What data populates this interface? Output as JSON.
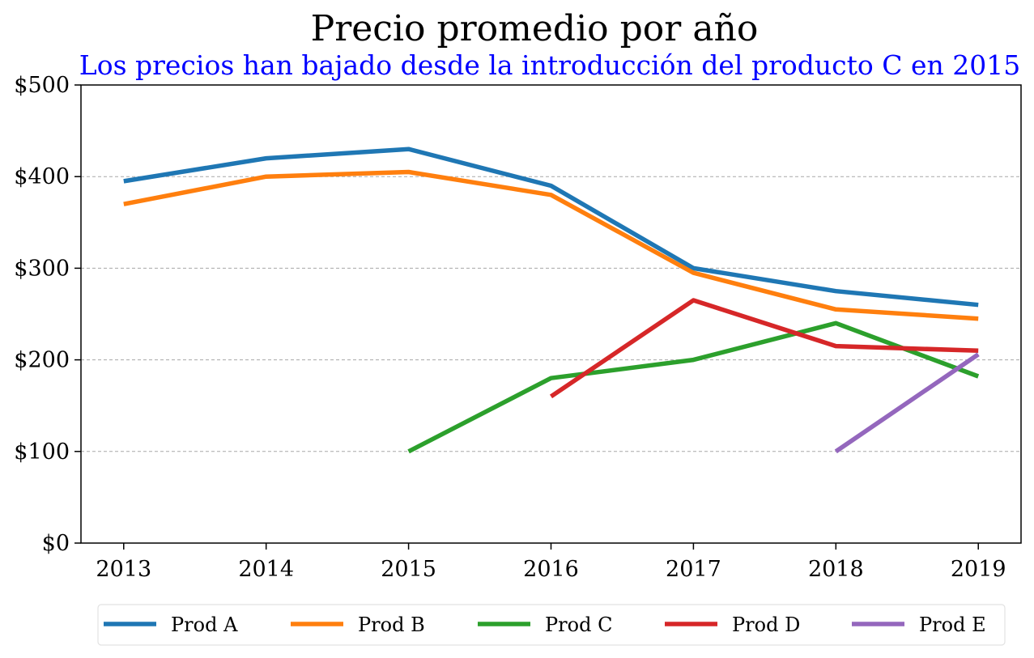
{
  "chart_data": {
    "type": "line",
    "title": "Precio promedio por año",
    "subtitle": "Los precios han bajado desde la introducción del producto C en 2015",
    "subtitle_color": "#0000ff",
    "x": [
      2013,
      2014,
      2015,
      2016,
      2017,
      2018,
      2019
    ],
    "x_tick_labels": [
      "2013",
      "2014",
      "2015",
      "2016",
      "2017",
      "2018",
      "2019"
    ],
    "xlim": [
      2012.7,
      2019.3
    ],
    "ylim": [
      0,
      500
    ],
    "y_ticks": [
      0,
      100,
      200,
      300,
      400,
      500
    ],
    "y_tick_labels": [
      "$0",
      "$100",
      "$200",
      "$300",
      "$400",
      "$500"
    ],
    "grid": "horizontal dashed",
    "legend_placement": "bottom-center",
    "series": [
      {
        "name": "Prod A",
        "color": "#1f77b4",
        "values": [
          395,
          420,
          430,
          390,
          300,
          275,
          260
        ]
      },
      {
        "name": "Prod B",
        "color": "#ff7f0e",
        "values": [
          370,
          400,
          405,
          380,
          295,
          255,
          245
        ]
      },
      {
        "name": "Prod C",
        "color": "#2ca02c",
        "values": [
          null,
          null,
          100,
          180,
          200,
          240,
          182
        ]
      },
      {
        "name": "Prod D",
        "color": "#d62728",
        "values": [
          null,
          null,
          null,
          160,
          265,
          215,
          210
        ]
      },
      {
        "name": "Prod E",
        "color": "#9467bd",
        "values": [
          null,
          null,
          null,
          null,
          null,
          100,
          206
        ]
      }
    ]
  }
}
